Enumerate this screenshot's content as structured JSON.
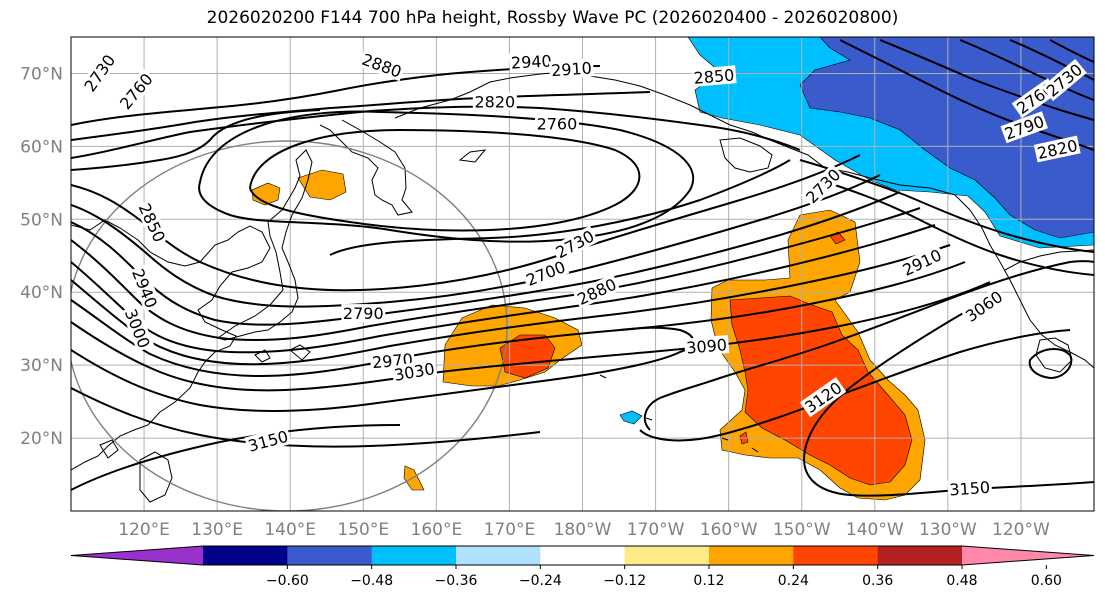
{
  "title": "2026020200 F144 700 hPa height, Rossby Wave PC (2026020400 - 2026020800)",
  "map": {
    "lon_range": [
      110,
      250
    ],
    "lat_range": [
      10,
      75
    ],
    "lat_ticks": [
      {
        "value": 20,
        "label": "20°N"
      },
      {
        "value": 30,
        "label": "30°N"
      },
      {
        "value": 40,
        "label": "40°N"
      },
      {
        "value": 50,
        "label": "50°N"
      },
      {
        "value": 60,
        "label": "60°N"
      },
      {
        "value": 70,
        "label": "70°N"
      }
    ],
    "lon_ticks": [
      {
        "value": 120,
        "label": "120°E"
      },
      {
        "value": 130,
        "label": "130°E"
      },
      {
        "value": 140,
        "label": "140°E"
      },
      {
        "value": 150,
        "label": "150°E"
      },
      {
        "value": 160,
        "label": "160°E"
      },
      {
        "value": 170,
        "label": "170°E"
      },
      {
        "value": 180,
        "label": "180°W"
      },
      {
        "value": 190,
        "label": "170°W"
      },
      {
        "value": 200,
        "label": "160°W"
      },
      {
        "value": 210,
        "label": "150°W"
      },
      {
        "value": 220,
        "label": "140°W"
      },
      {
        "value": 230,
        "label": "130°W"
      },
      {
        "value": 240,
        "label": "120°W"
      }
    ],
    "contour_labels": [
      {
        "text": "2940",
        "lon": 173,
        "lat": 71.5,
        "angle": -3
      },
      {
        "text": "2910",
        "lon": 178.5,
        "lat": 70.5,
        "angle": -4
      },
      {
        "text": "2880",
        "lon": 152.5,
        "lat": 71.0,
        "angle": 20
      },
      {
        "text": "2850",
        "lon": 198,
        "lat": 69.5,
        "angle": -5
      },
      {
        "text": "2820",
        "lon": 168,
        "lat": 66.0,
        "angle": 0
      },
      {
        "text": "2760",
        "lon": 176.5,
        "lat": 63.0,
        "angle": 0
      },
      {
        "text": "2730",
        "lon": 114,
        "lat": 70.0,
        "angle": -55
      },
      {
        "text": "2760",
        "lon": 119,
        "lat": 67.5,
        "angle": -50
      },
      {
        "text": "2730",
        "lon": 213,
        "lat": 54.5,
        "angle": -45
      },
      {
        "text": "2700",
        "lon": 175,
        "lat": 42.5,
        "angle": -22
      },
      {
        "text": "2730",
        "lon": 179,
        "lat": 46.5,
        "angle": -28
      },
      {
        "text": "2880",
        "lon": 182,
        "lat": 40.0,
        "angle": -25
      },
      {
        "text": "2790",
        "lon": 150,
        "lat": 37.0,
        "angle": 0
      },
      {
        "text": "2850",
        "lon": 121,
        "lat": 49.5,
        "angle": 65
      },
      {
        "text": "2940",
        "lon": 120,
        "lat": 40.5,
        "angle": 68
      },
      {
        "text": "3000",
        "lon": 119,
        "lat": 35.0,
        "angle": 68
      },
      {
        "text": "2970",
        "lon": 154,
        "lat": 30.5,
        "angle": -5
      },
      {
        "text": "3030",
        "lon": 157,
        "lat": 29.0,
        "angle": -10
      },
      {
        "text": "3090",
        "lon": 197,
        "lat": 32.5,
        "angle": -5
      },
      {
        "text": "3120",
        "lon": 213,
        "lat": 25.5,
        "angle": -35
      },
      {
        "text": "3060",
        "lon": 235,
        "lat": 38.0,
        "angle": -35
      },
      {
        "text": "2910",
        "lon": 226.5,
        "lat": 44.0,
        "angle": -25
      },
      {
        "text": "3150",
        "lon": 137,
        "lat": 19.5,
        "angle": -15
      },
      {
        "text": "3150",
        "lon": 233,
        "lat": 13.0,
        "angle": -4
      },
      {
        "text": "2790",
        "lon": 240.5,
        "lat": 62.5,
        "angle": -20
      },
      {
        "text": "2820",
        "lon": 245,
        "lat": 59.5,
        "angle": -12
      },
      {
        "text": "2760",
        "lon": 242,
        "lat": 66.5,
        "angle": -35
      },
      {
        "text": "2730",
        "lon": 246,
        "lat": 69.0,
        "angle": -40
      }
    ]
  },
  "colorbar": {
    "colors": [
      "#9932cc",
      "#00008b",
      "#3a5bcc",
      "#00bfff",
      "#b0e2ff",
      "#ffffff",
      "#ffea8a",
      "#ffa500",
      "#ff4500",
      "#b22222",
      "#ff88aa"
    ],
    "ticks": [
      "−0.60",
      "−0.48",
      "−0.36",
      "−0.24",
      "−0.12",
      "0.12",
      "0.24",
      "0.36",
      "0.48",
      "0.60"
    ]
  },
  "fill_colors": {
    "negative_light": "#00bfff",
    "negative_dark": "#3a5bcc",
    "positive_light": "#ffa500",
    "positive_dark": "#ff4500",
    "positive_pale": "#ffea8a"
  }
}
